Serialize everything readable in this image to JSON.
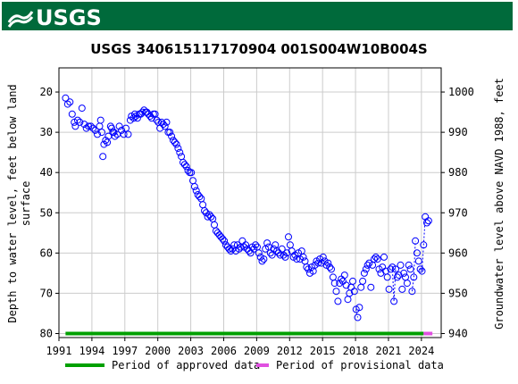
{
  "banner": {
    "logo_text": "USGS",
    "color": "#006a3b"
  },
  "chart_data": {
    "type": "scatter",
    "title": "USGS 340615117170904 001S004W10B004S",
    "ylabel_left": [
      "Depth to water level, feet below land",
      "surface"
    ],
    "ylabel_right": "Groundwater level above NAVD 1988, feet",
    "xlim": [
      1991,
      2025.8
    ],
    "ylim_left": [
      81,
      14
    ],
    "ylim_right": [
      939,
      1006
    ],
    "x_ticks": [
      1991,
      1994,
      1997,
      2000,
      2003,
      2006,
      2009,
      2012,
      2015,
      2018,
      2021,
      2024
    ],
    "y_ticks_left": [
      20,
      30,
      40,
      50,
      60,
      70,
      80
    ],
    "y_ticks_right": [
      940,
      950,
      960,
      970,
      980,
      990,
      1000
    ],
    "grid": true,
    "marker": "open-circle",
    "series_color": "#0000ff",
    "points": [
      [
        1991.6,
        21.5
      ],
      [
        1991.8,
        23
      ],
      [
        1992.0,
        22.5
      ],
      [
        1992.2,
        25.5
      ],
      [
        1992.4,
        27.5
      ],
      [
        1992.5,
        28.5
      ],
      [
        1992.7,
        27
      ],
      [
        1992.9,
        27.5
      ],
      [
        1993.1,
        24
      ],
      [
        1993.3,
        28
      ],
      [
        1993.5,
        29
      ],
      [
        1993.7,
        28.5
      ],
      [
        1993.9,
        28.5
      ],
      [
        1994.1,
        29
      ],
      [
        1994.3,
        29.5
      ],
      [
        1994.5,
        30.5
      ],
      [
        1994.7,
        28.5
      ],
      [
        1994.8,
        27
      ],
      [
        1994.9,
        30
      ],
      [
        1995.0,
        36
      ],
      [
        1995.1,
        33
      ],
      [
        1995.25,
        32
      ],
      [
        1995.4,
        32.5
      ],
      [
        1995.5,
        31
      ],
      [
        1995.7,
        28.5
      ],
      [
        1995.8,
        29
      ],
      [
        1995.9,
        30
      ],
      [
        1996.0,
        30
      ],
      [
        1996.1,
        31
      ],
      [
        1996.3,
        30.5
      ],
      [
        1996.5,
        28.5
      ],
      [
        1996.7,
        29.5
      ],
      [
        1996.9,
        30.5
      ],
      [
        1997.1,
        29
      ],
      [
        1997.3,
        30.5
      ],
      [
        1997.5,
        27
      ],
      [
        1997.6,
        26
      ],
      [
        1997.8,
        26.5
      ],
      [
        1997.9,
        25.5
      ],
      [
        1998.0,
        26
      ],
      [
        1998.15,
        26.5
      ],
      [
        1998.3,
        25.5
      ],
      [
        1998.45,
        25.5
      ],
      [
        1998.6,
        25
      ],
      [
        1998.75,
        24.5
      ],
      [
        1998.9,
        25
      ],
      [
        1999.0,
        25
      ],
      [
        1999.15,
        25.5
      ],
      [
        1999.3,
        26
      ],
      [
        1999.45,
        26.5
      ],
      [
        1999.6,
        25.5
      ],
      [
        1999.75,
        25.5
      ],
      [
        1999.9,
        27
      ],
      [
        2000.05,
        27.5
      ],
      [
        2000.2,
        29
      ],
      [
        2000.35,
        27.5
      ],
      [
        2000.5,
        28
      ],
      [
        2000.65,
        28.5
      ],
      [
        2000.8,
        27.5
      ],
      [
        2000.95,
        30
      ],
      [
        2001.1,
        30
      ],
      [
        2001.25,
        31
      ],
      [
        2001.4,
        32
      ],
      [
        2001.55,
        32.5
      ],
      [
        2001.7,
        33
      ],
      [
        2001.85,
        34
      ],
      [
        2002.0,
        35
      ],
      [
        2002.15,
        36
      ],
      [
        2002.3,
        37.5
      ],
      [
        2002.45,
        38
      ],
      [
        2002.6,
        38.5
      ],
      [
        2002.75,
        39.5
      ],
      [
        2002.9,
        40
      ],
      [
        2003.05,
        40
      ],
      [
        2003.2,
        42
      ],
      [
        2003.35,
        43.5
      ],
      [
        2003.5,
        44.5
      ],
      [
        2003.65,
        45.5
      ],
      [
        2003.8,
        46
      ],
      [
        2003.95,
        46.5
      ],
      [
        2004.1,
        48
      ],
      [
        2004.25,
        49.5
      ],
      [
        2004.4,
        50
      ],
      [
        2004.55,
        51
      ],
      [
        2004.7,
        50.5
      ],
      [
        2004.85,
        51
      ],
      [
        2005.0,
        51.5
      ],
      [
        2005.15,
        53
      ],
      [
        2005.3,
        54.5
      ],
      [
        2005.45,
        55
      ],
      [
        2005.6,
        55.5
      ],
      [
        2005.75,
        56
      ],
      [
        2005.9,
        56.5
      ],
      [
        2006.05,
        57
      ],
      [
        2006.2,
        58
      ],
      [
        2006.35,
        58.5
      ],
      [
        2006.5,
        59
      ],
      [
        2006.65,
        59.5
      ],
      [
        2006.8,
        59
      ],
      [
        2006.95,
        58
      ],
      [
        2007.1,
        59.5
      ],
      [
        2007.25,
        58
      ],
      [
        2007.4,
        59
      ],
      [
        2007.55,
        58.5
      ],
      [
        2007.7,
        57
      ],
      [
        2007.85,
        58.5
      ],
      [
        2008.0,
        58
      ],
      [
        2008.15,
        59
      ],
      [
        2008.3,
        59.5
      ],
      [
        2008.45,
        60
      ],
      [
        2008.6,
        58.5
      ],
      [
        2008.75,
        59
      ],
      [
        2008.9,
        58
      ],
      [
        2009.05,
        58.5
      ],
      [
        2009.2,
        60
      ],
      [
        2009.35,
        61
      ],
      [
        2009.5,
        62
      ],
      [
        2009.65,
        61.5
      ],
      [
        2009.8,
        59
      ],
      [
        2009.95,
        57.5
      ],
      [
        2010.1,
        58.5
      ],
      [
        2010.25,
        60
      ],
      [
        2010.4,
        60.5
      ],
      [
        2010.55,
        59
      ],
      [
        2010.7,
        58
      ],
      [
        2010.85,
        59.5
      ],
      [
        2011.0,
        60
      ],
      [
        2011.15,
        60.5
      ],
      [
        2011.3,
        59
      ],
      [
        2011.45,
        60.5
      ],
      [
        2011.6,
        61
      ],
      [
        2011.75,
        60
      ],
      [
        2011.9,
        56
      ],
      [
        2012.05,
        58
      ],
      [
        2012.2,
        59.5
      ],
      [
        2012.35,
        61
      ],
      [
        2012.5,
        60.5
      ],
      [
        2012.65,
        61.5
      ],
      [
        2012.8,
        60
      ],
      [
        2012.95,
        61.5
      ],
      [
        2013.1,
        59.5
      ],
      [
        2013.25,
        61
      ],
      [
        2013.4,
        62
      ],
      [
        2013.55,
        63.5
      ],
      [
        2013.7,
        64
      ],
      [
        2013.85,
        65
      ],
      [
        2014.0,
        63.5
      ],
      [
        2014.15,
        64.5
      ],
      [
        2014.3,
        63
      ],
      [
        2014.45,
        62
      ],
      [
        2014.6,
        62.5
      ],
      [
        2014.75,
        61.5
      ],
      [
        2014.9,
        62.5
      ],
      [
        2015.05,
        61
      ],
      [
        2015.2,
        62
      ],
      [
        2015.35,
        63
      ],
      [
        2015.5,
        62.5
      ],
      [
        2015.65,
        63.5
      ],
      [
        2015.8,
        64
      ],
      [
        2015.95,
        66
      ],
      [
        2016.1,
        67.5
      ],
      [
        2016.25,
        69.5
      ],
      [
        2016.4,
        72
      ],
      [
        2016.55,
        67.5
      ],
      [
        2016.7,
        66.5
      ],
      [
        2016.85,
        67
      ],
      [
        2017.0,
        65.5
      ],
      [
        2017.15,
        68
      ],
      [
        2017.3,
        71.5
      ],
      [
        2017.45,
        70
      ],
      [
        2017.6,
        68.5
      ],
      [
        2017.75,
        67
      ],
      [
        2017.9,
        69.5
      ],
      [
        2018.05,
        74
      ],
      [
        2018.2,
        76
      ],
      [
        2018.35,
        73.5
      ],
      [
        2018.5,
        68.5
      ],
      [
        2018.65,
        67
      ],
      [
        2018.8,
        65
      ],
      [
        2018.95,
        64
      ],
      [
        2019.1,
        63
      ],
      [
        2019.25,
        62.5
      ],
      [
        2019.4,
        68.5
      ],
      [
        2019.55,
        63
      ],
      [
        2019.7,
        61.5
      ],
      [
        2019.85,
        61
      ],
      [
        2020.0,
        61.5
      ],
      [
        2020.15,
        64
      ],
      [
        2020.3,
        65
      ],
      [
        2020.45,
        63.5
      ],
      [
        2020.6,
        61
      ],
      [
        2020.75,
        64.5
      ],
      [
        2020.9,
        66
      ],
      [
        2021.05,
        69
      ],
      [
        2021.2,
        64
      ],
      [
        2021.35,
        63.5
      ],
      [
        2021.5,
        72
      ],
      [
        2021.65,
        64
      ],
      [
        2021.8,
        66
      ],
      [
        2021.95,
        65.5
      ],
      [
        2022.1,
        63
      ],
      [
        2022.25,
        69
      ],
      [
        2022.4,
        65
      ],
      [
        2022.55,
        66
      ],
      [
        2022.7,
        67.5
      ],
      [
        2022.85,
        63
      ],
      [
        2023.0,
        64
      ],
      [
        2023.15,
        69.5
      ],
      [
        2023.3,
        66
      ],
      [
        2023.45,
        57
      ],
      [
        2023.6,
        60
      ],
      [
        2023.75,
        62
      ],
      [
        2023.9,
        64
      ],
      [
        2024.05,
        64.5
      ],
      [
        2024.2,
        58
      ],
      [
        2024.35,
        51
      ],
      [
        2024.5,
        52.5
      ],
      [
        2024.65,
        52
      ]
    ],
    "dashed_segments": [
      [
        [
          2018.05,
          74
        ],
        [
          2018.2,
          76
        ]
      ],
      [
        [
          2021.35,
          63.5
        ],
        [
          2021.5,
          72
        ],
        [
          2021.65,
          64
        ]
      ],
      [
        [
          2023.15,
          69.5
        ],
        [
          2023.3,
          66
        ],
        [
          2023.45,
          57
        ]
      ],
      [
        [
          2023.9,
          64
        ],
        [
          2024.05,
          64.5
        ],
        [
          2024.2,
          58
        ],
        [
          2024.35,
          51
        ]
      ]
    ],
    "periods": [
      {
        "name": "Period of approved data",
        "start": 1991.6,
        "end": 2024.2,
        "color": "#00a000"
      },
      {
        "name": "Period of provisional data",
        "start": 2024.2,
        "end": 2025.0,
        "color": "#e050e0"
      }
    ],
    "legend_placement": "bottom"
  }
}
